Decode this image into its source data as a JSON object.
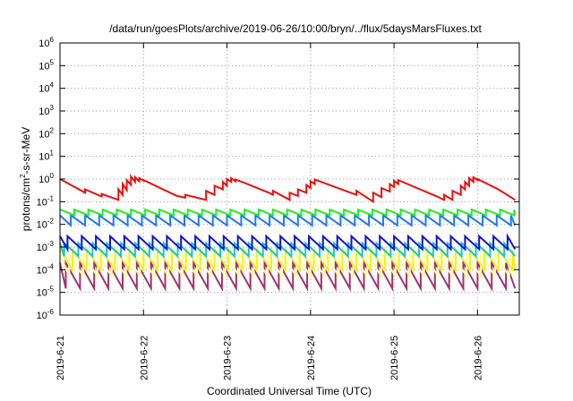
{
  "chart_data": {
    "type": "line",
    "title": "/data/run/goesPlots/archive/2019-06-26/10:00/bryn/../flux/5daysMarsFluxes.txt",
    "xlabel": "Coordinated Universal Time (UTC)",
    "ylabel": "protons/cm²-s-sr-MeV",
    "ylabel_parts": {
      "base": "protons/cm",
      "sup": "2",
      "rest": "-s-sr-MeV"
    },
    "yscale": "log",
    "ylim": [
      1e-06,
      1000000.0
    ],
    "xlim": [
      "2019-6-21",
      "2019-6-26 12:00"
    ],
    "x_tick_labels": [
      "2019-6-21",
      "2019-6-22",
      "2019-6-23",
      "2019-6-24",
      "2019-6-25",
      "2019-6-26"
    ],
    "y_ticks": [
      {
        "base": "10",
        "exp": "-6"
      },
      {
        "base": "10",
        "exp": "-5"
      },
      {
        "base": "10",
        "exp": "-4"
      },
      {
        "base": "10",
        "exp": "-3"
      },
      {
        "base": "10",
        "exp": "-2"
      },
      {
        "base": "10",
        "exp": "-1"
      },
      {
        "base": "10",
        "exp": "0"
      },
      {
        "base": "10",
        "exp": "1"
      },
      {
        "base": "10",
        "exp": "2"
      },
      {
        "base": "10",
        "exp": "3"
      },
      {
        "base": "10",
        "exp": "4"
      },
      {
        "base": "10",
        "exp": "5"
      },
      {
        "base": "10",
        "exp": "6"
      }
    ],
    "grid": true,
    "legend": "none",
    "series": [
      {
        "color": "#e81010",
        "width": 2,
        "x": [
          0,
          0.15,
          0.3,
          0.3,
          0.5,
          0.5,
          0.7,
          0.7,
          0.75,
          0.75,
          0.8,
          0.8,
          0.85,
          0.85,
          0.9,
          0.9,
          0.95,
          0.95,
          1.0,
          1.0,
          1.4,
          1.5,
          1.5,
          1.75,
          1.75,
          1.85,
          1.85,
          1.95,
          1.95,
          2.0,
          2.0,
          2.05,
          2.05,
          2.1,
          2.1,
          2.2,
          2.5,
          2.55,
          2.55,
          2.75,
          2.75,
          2.85,
          2.85,
          2.95,
          2.95,
          3.0,
          3.0,
          3.05,
          3.05,
          3.55,
          3.55,
          3.75,
          3.75,
          3.85,
          3.85,
          3.95,
          3.95,
          4.0,
          4.0,
          4.05,
          4.05,
          4.5,
          4.6,
          4.6,
          4.7,
          4.7,
          4.8,
          4.8,
          4.85,
          4.85,
          4.9,
          4.9,
          4.95,
          4.95,
          5.0,
          5.0,
          5.25,
          5.45
        ],
        "y": [
          1.0,
          0.5,
          0.25,
          0.35,
          0.17,
          0.22,
          0.12,
          0.35,
          0.2,
          0.6,
          0.32,
          0.9,
          0.55,
          1.3,
          0.75,
          1.2,
          0.8,
          1.1,
          0.85,
          0.9,
          0.18,
          0.15,
          0.2,
          0.12,
          0.3,
          0.2,
          0.5,
          0.35,
          0.75,
          0.5,
          1.0,
          0.75,
          1.1,
          0.8,
          0.95,
          0.7,
          0.25,
          0.2,
          0.3,
          0.12,
          0.25,
          0.18,
          0.35,
          0.25,
          0.55,
          0.4,
          0.8,
          0.6,
          0.95,
          0.2,
          0.3,
          0.1,
          0.25,
          0.16,
          0.4,
          0.28,
          0.6,
          0.45,
          0.85,
          0.6,
          0.9,
          0.18,
          0.12,
          0.2,
          0.12,
          0.3,
          0.2,
          0.5,
          0.35,
          0.75,
          0.5,
          1.1,
          0.75,
          1.2,
          0.9,
          1.0,
          0.35,
          0.12
        ]
      },
      {
        "color": "#22ee22",
        "width": 2,
        "x": [
          0.0,
          5.45
        ],
        "y": [
          0.04,
          0.04
        ],
        "sawtooth": {
          "period": 0.17,
          "low": 0.025,
          "high": 0.045
        }
      },
      {
        "color": "#1e78ff",
        "width": 2,
        "x": [
          0.0,
          5.45
        ],
        "y": [
          0.018,
          0.018
        ],
        "sawtooth": {
          "period": 0.17,
          "low": 0.009,
          "high": 0.025,
          "phase": 0.04
        }
      },
      {
        "color": "#1414c8",
        "width": 2,
        "x": [
          0.0,
          5.45
        ],
        "y": [
          0.002,
          0.002
        ],
        "sawtooth": {
          "period": 0.17,
          "low": 0.0008,
          "high": 0.003,
          "phase": 0.08
        }
      },
      {
        "color": "#10c8c8",
        "width": 2,
        "x": [
          0.0,
          5.45
        ],
        "y": [
          0.001,
          0.001
        ],
        "sawtooth": {
          "period": 0.17,
          "low": 0.0004,
          "high": 0.0015,
          "phase": 0.12
        }
      },
      {
        "color": "#f0f020",
        "width": 2,
        "x": [
          0.0,
          5.45
        ],
        "y": [
          0.0003,
          0.0003
        ],
        "sawtooth": {
          "period": 0.17,
          "low": 0.0001,
          "high": 0.0008,
          "phase": 0.02
        }
      },
      {
        "color": "#ffffa0",
        "width": 2,
        "x": [
          0.0,
          5.45
        ],
        "y": [
          0.00015,
          0.00015
        ],
        "sawtooth": {
          "period": 0.17,
          "low": 5e-05,
          "high": 0.0005,
          "phase": 0.06
        }
      },
      {
        "color": "#a0326e",
        "width": 2,
        "x": [
          0.0,
          5.45
        ],
        "y": [
          5e-05,
          5e-05
        ],
        "sawtooth": {
          "period": 0.17,
          "low": 1.5e-05,
          "high": 0.0002,
          "phase": 0.1
        }
      }
    ]
  }
}
